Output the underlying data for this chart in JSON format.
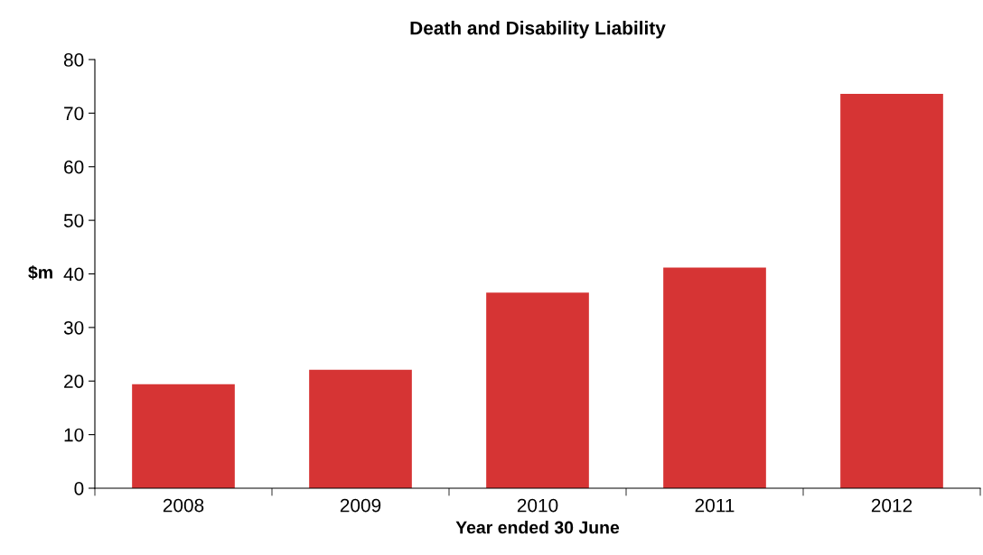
{
  "chart_data": {
    "type": "bar",
    "title": "Death and Disability Liability",
    "xlabel": "Year ended 30 June",
    "ylabel": "$m",
    "categories": [
      "2008",
      "2009",
      "2010",
      "2011",
      "2012"
    ],
    "values": [
      19.4,
      22.1,
      36.5,
      41.2,
      73.6
    ],
    "color": "#d63434",
    "ylim": [
      0,
      80
    ],
    "yticks": [
      0,
      10,
      20,
      30,
      40,
      50,
      60,
      70,
      80
    ],
    "grid": false,
    "legend": false
  }
}
